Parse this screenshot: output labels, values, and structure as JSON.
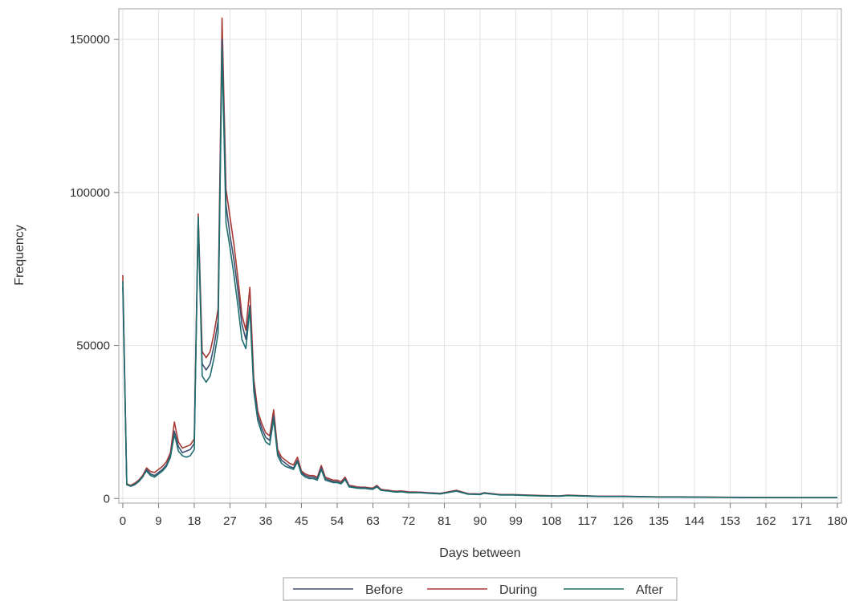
{
  "chart_data": {
    "type": "line",
    "xlabel": "Days between",
    "ylabel": "Frequency",
    "xlim": [
      -1,
      181
    ],
    "ylim": [
      -1500,
      160000
    ],
    "x_ticks": [
      0,
      9,
      18,
      27,
      36,
      45,
      54,
      63,
      72,
      81,
      90,
      99,
      108,
      117,
      126,
      135,
      144,
      153,
      162,
      171,
      180
    ],
    "x_tick_labels": [
      "0",
      "9",
      "18",
      "27",
      "36",
      "45",
      "54",
      "63",
      "72",
      "81",
      "90",
      "99",
      "108",
      "117",
      "126",
      "135",
      "144",
      "153",
      "162",
      "171",
      "180"
    ],
    "y_ticks": [
      0,
      50000,
      100000,
      150000
    ],
    "y_tick_labels": [
      "0",
      "50000",
      "100000",
      "150000"
    ],
    "grid": true,
    "legend_position": "bottom",
    "x": [
      0,
      1,
      2,
      3,
      4,
      5,
      6,
      7,
      8,
      9,
      10,
      11,
      12,
      13,
      14,
      15,
      16,
      17,
      18,
      19,
      20,
      21,
      22,
      23,
      24,
      25,
      26,
      27,
      28,
      29,
      30,
      31,
      32,
      33,
      34,
      35,
      36,
      37,
      38,
      39,
      40,
      41,
      42,
      43,
      44,
      45,
      46,
      47,
      48,
      49,
      50,
      51,
      52,
      53,
      54,
      55,
      56,
      57,
      58,
      59,
      60,
      61,
      62,
      63,
      64,
      65,
      66,
      67,
      68,
      69,
      70,
      72,
      75,
      77,
      80,
      84,
      87,
      90,
      91,
      95,
      98,
      105,
      110,
      112,
      120,
      126,
      135,
      140,
      150,
      160,
      170,
      180
    ],
    "series": [
      {
        "name": "Before",
        "color": "#3d4f73",
        "values": [
          69000,
          4500,
          4000,
          4500,
          5500,
          7000,
          9500,
          8000,
          7500,
          8500,
          9500,
          11000,
          14000,
          22000,
          17000,
          15000,
          15500,
          16000,
          18000,
          91000,
          44000,
          42000,
          44000,
          50000,
          58000,
          150000,
          96000,
          86000,
          78000,
          68000,
          57000,
          52000,
          63000,
          37000,
          27000,
          23000,
          20000,
          19000,
          27000,
          15000,
          12500,
          11500,
          10500,
          10000,
          12500,
          8500,
          7500,
          7000,
          7000,
          6500,
          10000,
          6500,
          6000,
          5500,
          5500,
          5000,
          6500,
          4000,
          3800,
          3500,
          3500,
          3500,
          3300,
          3200,
          4000,
          2800,
          2600,
          2500,
          2300,
          2200,
          2300,
          2000,
          2000,
          1800,
          1600,
          2500,
          1500,
          1400,
          1800,
          1200,
          1200,
          900,
          800,
          1000,
          700,
          700,
          500,
          500,
          400,
          300,
          300,
          300
        ]
      },
      {
        "name": "During",
        "color": "#a83a35",
        "values": [
          73000,
          4800,
          4300,
          5000,
          6000,
          7500,
          10000,
          8800,
          8500,
          9500,
          10500,
          12000,
          15000,
          25000,
          18500,
          16500,
          17000,
          17500,
          19500,
          93000,
          48000,
          46000,
          48000,
          54000,
          62000,
          157000,
          101000,
          92000,
          83000,
          72000,
          60000,
          55000,
          69000,
          39000,
          28500,
          24500,
          21500,
          20500,
          29000,
          16000,
          13500,
          12500,
          11500,
          11000,
          13500,
          9000,
          8000,
          7500,
          7500,
          7000,
          10800,
          7000,
          6500,
          6000,
          6000,
          5500,
          7000,
          4300,
          4100,
          3800,
          3700,
          3700,
          3500,
          3400,
          4300,
          3000,
          2800,
          2700,
          2500,
          2400,
          2500,
          2200,
          2100,
          1900,
          1700,
          2700,
          1600,
          1500,
          1900,
          1300,
          1300,
          1000,
          850,
          1100,
          750,
          750,
          550,
          550,
          450,
          350,
          320,
          320
        ]
      },
      {
        "name": "After",
        "color": "#1f6e6e",
        "values": [
          71000,
          4600,
          4100,
          4700,
          5700,
          7200,
          9000,
          7500,
          7000,
          8000,
          9000,
          10500,
          13500,
          21000,
          15500,
          14000,
          13500,
          14000,
          16000,
          92000,
          40000,
          38000,
          40000,
          46000,
          54000,
          147000,
          90000,
          82000,
          73000,
          63000,
          52000,
          49000,
          62000,
          35000,
          25500,
          21500,
          18500,
          17500,
          26000,
          14000,
          11500,
          10500,
          10000,
          9500,
          12000,
          8000,
          7000,
          6500,
          6500,
          6000,
          9500,
          6000,
          5600,
          5200,
          5200,
          4800,
          6200,
          3800,
          3600,
          3400,
          3300,
          3300,
          3100,
          3000,
          3800,
          2700,
          2500,
          2400,
          2200,
          2100,
          2200,
          1900,
          1900,
          1700,
          1500,
          2400,
          1400,
          1300,
          1700,
          1150,
          1150,
          850,
          750,
          950,
          650,
          650,
          480,
          480,
          380,
          290,
          280,
          280
        ]
      }
    ]
  }
}
